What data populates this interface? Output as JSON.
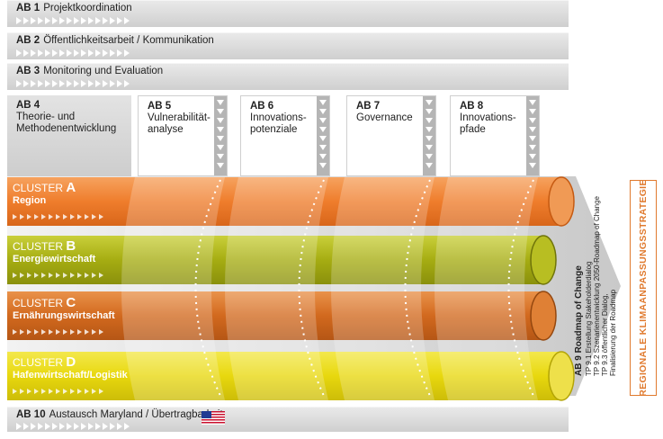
{
  "top_bands": [
    {
      "code": "AB 1",
      "title": "Projektkoordination"
    },
    {
      "code": "AB 2",
      "title": "Öffentlichkeitsarbeit / Kommunikation"
    },
    {
      "code": "AB 3",
      "title": "Monitoring und Evaluation"
    }
  ],
  "columns": [
    {
      "code": "AB 4",
      "title_line1": "Theorie- und",
      "title_line2": "Methodenentwicklung"
    },
    {
      "code": "AB 5",
      "title_line1": "Vulnerabilität-",
      "title_line2": "analyse"
    },
    {
      "code": "AB 6",
      "title_line1": "Innovations-",
      "title_line2": "potenziale"
    },
    {
      "code": "AB 7",
      "title_line1": "Governance",
      "title_line2": ""
    },
    {
      "code": "AB 8",
      "title_line1": "Innovations-",
      "title_line2": "pfade"
    }
  ],
  "clusters": [
    {
      "prefix": "CLUSTER",
      "letter": "A",
      "name": "Region",
      "color": "#ef7d2c"
    },
    {
      "prefix": "CLUSTER",
      "letter": "B",
      "name": "Energiewirtschaft",
      "color": "#a6ad12"
    },
    {
      "prefix": "CLUSTER",
      "letter": "C",
      "name": "Ernährungswirtschaft",
      "color": "#d2691e"
    },
    {
      "prefix": "CLUSTER",
      "letter": "D",
      "name": "Hafenwirtschaft/Logistik",
      "color": "#e8d80e"
    }
  ],
  "roadmap": {
    "title": "AB 9 Roadmap of Change",
    "lines": [
      "TP 9.1 Erstellung Stakeholderdialog",
      "TP 9.2 Szenarienentwicklung 2050-Roadmap of Change",
      "TP 9.3 öffentlicher Dialog,",
      "Finalisierung der Roadmap"
    ]
  },
  "strategy_label": "REGIONALE KLIMAANPASSUNGSSTRATEGIE",
  "bottom_band": {
    "code": "AB 10",
    "title": "Austausch Maryland / Übertragbarkeit"
  },
  "colors": {
    "band_gray": "#d6d6d6",
    "accent_orange": "#e07a2e"
  }
}
